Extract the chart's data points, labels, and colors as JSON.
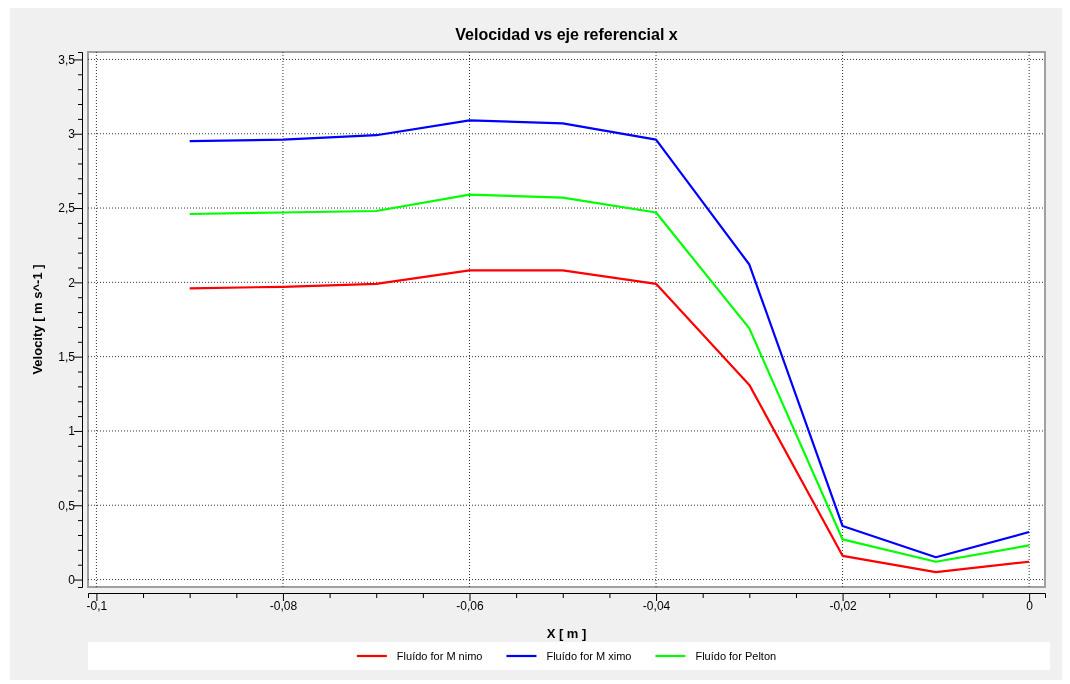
{
  "chart_data": {
    "type": "line",
    "title": "Velocidad vs eje referencial x",
    "xlabel": "X [ m ]",
    "ylabel": "Velocity [ m s^-1 ]",
    "x": [
      -0.09,
      -0.08,
      -0.07,
      -0.06,
      -0.05,
      -0.04,
      -0.03,
      -0.02,
      -0.01,
      0
    ],
    "series": [
      {
        "name": "Fluído for M nimo",
        "color": "#ff0000",
        "values": [
          1.96,
          1.97,
          1.99,
          2.08,
          2.08,
          1.99,
          1.31,
          0.16,
          0.05,
          0.12
        ]
      },
      {
        "name": "Fluído for M ximo",
        "color": "#0000ff",
        "values": [
          2.95,
          2.96,
          2.99,
          3.09,
          3.07,
          2.96,
          2.12,
          0.36,
          0.15,
          0.32
        ]
      },
      {
        "name": "Fluído for Pelton",
        "color": "#00ff00",
        "values": [
          2.46,
          2.47,
          2.48,
          2.59,
          2.57,
          2.47,
          1.69,
          0.27,
          0.12,
          0.23
        ]
      }
    ],
    "xlim": [
      -0.1009,
      0.0017
    ],
    "ylim": [
      -0.05,
      3.55
    ],
    "xticks": [
      {
        "value": -0.1,
        "label": "-0,1"
      },
      {
        "value": -0.095,
        "label": null
      },
      {
        "value": -0.09,
        "label": null
      },
      {
        "value": -0.085,
        "label": null
      },
      {
        "value": -0.08,
        "label": "-0,08"
      },
      {
        "value": -0.075,
        "label": null
      },
      {
        "value": -0.07,
        "label": null
      },
      {
        "value": -0.065,
        "label": null
      },
      {
        "value": -0.06,
        "label": "-0,06"
      },
      {
        "value": -0.055,
        "label": null
      },
      {
        "value": -0.05,
        "label": null
      },
      {
        "value": -0.045,
        "label": null
      },
      {
        "value": -0.04,
        "label": "-0,04"
      },
      {
        "value": -0.035,
        "label": null
      },
      {
        "value": -0.03,
        "label": null
      },
      {
        "value": -0.025,
        "label": null
      },
      {
        "value": -0.02,
        "label": "-0,02"
      },
      {
        "value": -0.015,
        "label": null
      },
      {
        "value": -0.01,
        "label": null
      },
      {
        "value": -0.005,
        "label": null
      },
      {
        "value": 0,
        "label": "0"
      }
    ],
    "yticks": [
      {
        "value": 0,
        "label": "0"
      },
      {
        "value": 0.1,
        "label": null
      },
      {
        "value": 0.2,
        "label": null
      },
      {
        "value": 0.3,
        "label": null
      },
      {
        "value": 0.4,
        "label": null
      },
      {
        "value": 0.5,
        "label": "0,5"
      },
      {
        "value": 0.6,
        "label": null
      },
      {
        "value": 0.7,
        "label": null
      },
      {
        "value": 0.8,
        "label": null
      },
      {
        "value": 0.9,
        "label": null
      },
      {
        "value": 1,
        "label": "1"
      },
      {
        "value": 1.1,
        "label": null
      },
      {
        "value": 1.2,
        "label": null
      },
      {
        "value": 1.3,
        "label": null
      },
      {
        "value": 1.4,
        "label": null
      },
      {
        "value": 1.5,
        "label": "1,5"
      },
      {
        "value": 1.6,
        "label": null
      },
      {
        "value": 1.7,
        "label": null
      },
      {
        "value": 1.8,
        "label": null
      },
      {
        "value": 1.9,
        "label": null
      },
      {
        "value": 2,
        "label": "2"
      },
      {
        "value": 2.1,
        "label": null
      },
      {
        "value": 2.2,
        "label": null
      },
      {
        "value": 2.3,
        "label": null
      },
      {
        "value": 2.4,
        "label": null
      },
      {
        "value": 2.5,
        "label": "2,5"
      },
      {
        "value": 2.6,
        "label": null
      },
      {
        "value": 2.7,
        "label": null
      },
      {
        "value": 2.8,
        "label": null
      },
      {
        "value": 2.9,
        "label": null
      },
      {
        "value": 3,
        "label": "3"
      },
      {
        "value": 3.1,
        "label": null
      },
      {
        "value": 3.2,
        "label": null
      },
      {
        "value": 3.3,
        "label": null
      },
      {
        "value": 3.4,
        "label": null
      },
      {
        "value": 3.5,
        "label": "3,5"
      }
    ],
    "grid": true,
    "legend": "bottom",
    "marker": "none",
    "line_style": "solid"
  }
}
